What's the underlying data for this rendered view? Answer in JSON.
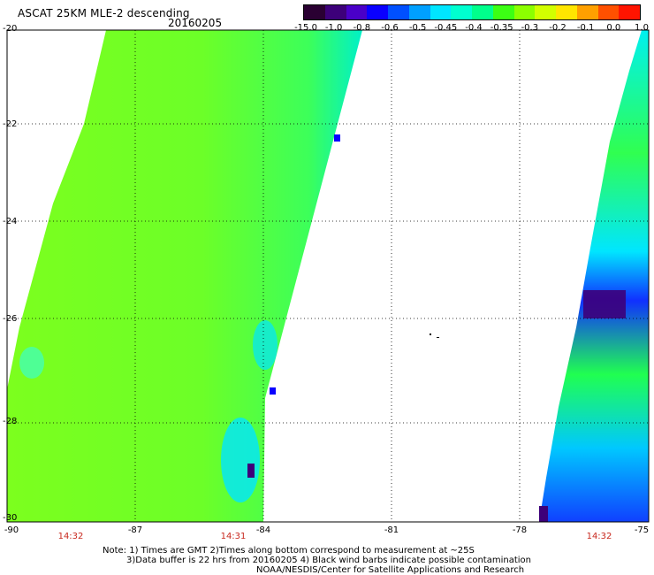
{
  "header": {
    "title": "ASCAT 25KM MLE-2 descending",
    "date": "20160205"
  },
  "colorbar": {
    "colors": [
      "#2a0032",
      "#3d007a",
      "#4a00c8",
      "#0a00ff",
      "#0050ff",
      "#00a0ff",
      "#00e6ff",
      "#00ffd0",
      "#00ff8c",
      "#3cff14",
      "#8cff00",
      "#d2ff00",
      "#ffe600",
      "#ffa000",
      "#ff5000",
      "#ff1400"
    ],
    "labels": [
      "-15.0",
      "-1.0",
      "-0.8",
      "-0.6",
      "-0.5",
      "-0.45",
      "-0.4",
      "-0.35",
      "-0.3",
      "-0.2",
      "-0.1",
      "0.0",
      "1.0"
    ]
  },
  "axes": {
    "lat_labels": [
      "-20",
      "-22",
      "-24",
      "-26",
      "-28",
      "-30"
    ],
    "lon_labels": [
      "-90",
      "-87",
      "-84",
      "-81",
      "-78",
      "-75"
    ],
    "time_labels": [
      "14:32",
      "14:31",
      "14:32"
    ]
  },
  "notes": {
    "line1": "Note: 1) Times are GMT 2)Times along bottom correspond to measurement at ~25S",
    "line2": "3)Data buffer is 22 hrs from 20160205 4) Black wind barbs indicate possible contamination",
    "line3": "NOAA/NESDIS/Center for Satellite Applications and Research"
  }
}
